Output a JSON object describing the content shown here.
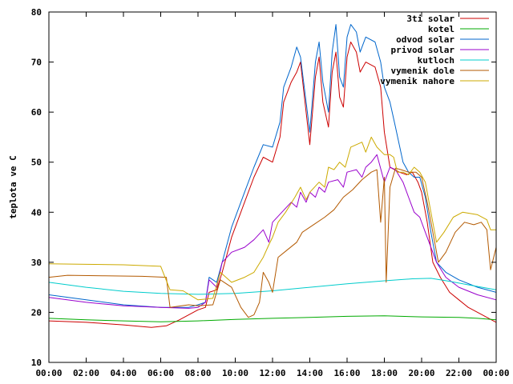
{
  "chart_data": {
    "type": "line",
    "ylabel": "teplota ve C",
    "xlabel": "",
    "ylim": [
      10,
      80
    ],
    "xlim": [
      0,
      24
    ],
    "yticks": [
      10,
      20,
      30,
      40,
      50,
      60,
      70,
      80
    ],
    "xticks": [
      {
        "value": 0,
        "label": "00:00"
      },
      {
        "value": 2,
        "label": "02:00"
      },
      {
        "value": 4,
        "label": "04:00"
      },
      {
        "value": 6,
        "label": "06:00"
      },
      {
        "value": 8,
        "label": "08:00"
      },
      {
        "value": 10,
        "label": "10:00"
      },
      {
        "value": 12,
        "label": "12:00"
      },
      {
        "value": 14,
        "label": "14:00"
      },
      {
        "value": 16,
        "label": "16:00"
      },
      {
        "value": 18,
        "label": "18:00"
      },
      {
        "value": 20,
        "label": "20:00"
      },
      {
        "value": 22,
        "label": "22:00"
      },
      {
        "value": 24,
        "label": "00:00"
      }
    ],
    "legend_position": "top-right",
    "grid": false,
    "series": [
      {
        "name": "3ti solar",
        "color": "#cc0000",
        "points": [
          [
            0,
            18.3
          ],
          [
            2,
            18
          ],
          [
            4,
            17.5
          ],
          [
            5.5,
            17
          ],
          [
            6.3,
            17.3
          ],
          [
            7,
            18.5
          ],
          [
            8,
            20.5
          ],
          [
            8.4,
            21
          ],
          [
            8.6,
            24
          ],
          [
            9,
            24.5
          ],
          [
            9.3,
            28
          ],
          [
            9.8,
            35
          ],
          [
            10.5,
            42
          ],
          [
            11,
            47
          ],
          [
            11.5,
            51
          ],
          [
            12,
            50
          ],
          [
            12.4,
            55
          ],
          [
            12.6,
            62
          ],
          [
            13,
            66
          ],
          [
            13.3,
            68
          ],
          [
            13.5,
            70
          ],
          [
            13.8,
            60
          ],
          [
            14,
            53.5
          ],
          [
            14.3,
            67
          ],
          [
            14.5,
            71
          ],
          [
            14.7,
            62
          ],
          [
            15,
            57
          ],
          [
            15.2,
            68
          ],
          [
            15.4,
            72
          ],
          [
            15.6,
            63
          ],
          [
            15.8,
            61
          ],
          [
            16,
            71
          ],
          [
            16.2,
            74
          ],
          [
            16.5,
            72
          ],
          [
            16.7,
            68
          ],
          [
            17,
            70
          ],
          [
            17.5,
            69
          ],
          [
            17.8,
            65
          ],
          [
            18,
            56
          ],
          [
            18.3,
            49
          ],
          [
            18.8,
            48
          ],
          [
            19.2,
            47.5
          ],
          [
            19.5,
            48
          ],
          [
            19.8,
            46
          ],
          [
            20,
            44
          ],
          [
            20.3,
            38
          ],
          [
            20.6,
            30
          ],
          [
            21,
            27
          ],
          [
            21.5,
            24
          ],
          [
            22,
            22.5
          ],
          [
            22.5,
            21
          ],
          [
            23,
            20
          ],
          [
            23.5,
            19
          ],
          [
            24,
            18
          ]
        ]
      },
      {
        "name": "kotel",
        "color": "#00aa00",
        "points": [
          [
            0,
            18.8
          ],
          [
            2,
            18.5
          ],
          [
            4,
            18.3
          ],
          [
            6,
            18.1
          ],
          [
            8,
            18.3
          ],
          [
            10,
            18.6
          ],
          [
            12,
            18.8
          ],
          [
            14,
            19
          ],
          [
            16,
            19.2
          ],
          [
            18,
            19.3
          ],
          [
            20,
            19.1
          ],
          [
            22,
            19
          ],
          [
            23,
            18.8
          ],
          [
            24,
            18.5
          ]
        ]
      },
      {
        "name": "odvod solar",
        "color": "#0066cc",
        "points": [
          [
            0,
            23.5
          ],
          [
            2,
            22.5
          ],
          [
            4,
            21.5
          ],
          [
            6,
            21
          ],
          [
            7.5,
            21
          ],
          [
            8,
            21.5
          ],
          [
            8.4,
            22
          ],
          [
            8.6,
            27
          ],
          [
            9,
            26
          ],
          [
            9.3,
            30
          ],
          [
            9.8,
            37
          ],
          [
            10.5,
            44
          ],
          [
            11,
            49
          ],
          [
            11.5,
            53.5
          ],
          [
            12,
            53
          ],
          [
            12.4,
            58
          ],
          [
            12.6,
            65
          ],
          [
            13,
            69
          ],
          [
            13.3,
            73
          ],
          [
            13.5,
            71
          ],
          [
            13.8,
            62
          ],
          [
            14,
            56
          ],
          [
            14.3,
            70
          ],
          [
            14.5,
            74
          ],
          [
            14.7,
            66
          ],
          [
            15,
            60
          ],
          [
            15.2,
            72
          ],
          [
            15.4,
            77.5
          ],
          [
            15.6,
            67
          ],
          [
            15.8,
            65
          ],
          [
            16,
            75
          ],
          [
            16.2,
            77.5
          ],
          [
            16.5,
            76
          ],
          [
            16.7,
            72
          ],
          [
            17,
            75
          ],
          [
            17.5,
            74
          ],
          [
            17.8,
            70
          ],
          [
            18,
            65
          ],
          [
            18.3,
            62
          ],
          [
            18.6,
            57
          ],
          [
            19,
            50
          ],
          [
            19.3,
            48
          ],
          [
            19.6,
            47
          ],
          [
            19.9,
            47
          ],
          [
            20.2,
            43
          ],
          [
            20.5,
            36
          ],
          [
            20.8,
            30
          ],
          [
            21.3,
            28
          ],
          [
            22,
            26.5
          ],
          [
            23,
            25
          ],
          [
            24,
            24
          ]
        ]
      },
      {
        "name": "privod solar",
        "color": "#9900cc",
        "points": [
          [
            0,
            23
          ],
          [
            2,
            22
          ],
          [
            4,
            21.3
          ],
          [
            6,
            21
          ],
          [
            7.5,
            20.8
          ],
          [
            8,
            21
          ],
          [
            8.4,
            22
          ],
          [
            8.6,
            26.5
          ],
          [
            9,
            25
          ],
          [
            9.3,
            30
          ],
          [
            9.8,
            32
          ],
          [
            10.5,
            33
          ],
          [
            11,
            34.5
          ],
          [
            11.5,
            36.5
          ],
          [
            11.8,
            34
          ],
          [
            12,
            38
          ],
          [
            12.5,
            40
          ],
          [
            13,
            42
          ],
          [
            13.3,
            41
          ],
          [
            13.5,
            44
          ],
          [
            13.8,
            42
          ],
          [
            14,
            44
          ],
          [
            14.3,
            43
          ],
          [
            14.5,
            45
          ],
          [
            14.8,
            44
          ],
          [
            15,
            46
          ],
          [
            15.5,
            46.5
          ],
          [
            15.8,
            45
          ],
          [
            16,
            48
          ],
          [
            16.5,
            48.5
          ],
          [
            16.8,
            47
          ],
          [
            17,
            49
          ],
          [
            17.3,
            50
          ],
          [
            17.6,
            51.5
          ],
          [
            18,
            46
          ],
          [
            18.3,
            49
          ],
          [
            18.6,
            48.5
          ],
          [
            19,
            46
          ],
          [
            19.3,
            43
          ],
          [
            19.6,
            40
          ],
          [
            19.9,
            39
          ],
          [
            20.2,
            36
          ],
          [
            20.5,
            33
          ],
          [
            20.8,
            30
          ],
          [
            21.3,
            27
          ],
          [
            22,
            25
          ],
          [
            23,
            23.5
          ],
          [
            24,
            22.5
          ]
        ]
      },
      {
        "name": "kutloch",
        "color": "#00cccc",
        "points": [
          [
            0,
            26
          ],
          [
            2,
            25
          ],
          [
            4,
            24.2
          ],
          [
            6,
            23.8
          ],
          [
            8,
            23.6
          ],
          [
            10,
            23.8
          ],
          [
            12,
            24.3
          ],
          [
            14,
            25
          ],
          [
            16,
            25.7
          ],
          [
            18,
            26.3
          ],
          [
            19.5,
            26.7
          ],
          [
            20.5,
            26.8
          ],
          [
            21.5,
            26.2
          ],
          [
            22.5,
            25.5
          ],
          [
            24,
            24.5
          ]
        ]
      },
      {
        "name": "vymenik dole",
        "color": "#b35900",
        "points": [
          [
            0,
            27
          ],
          [
            1,
            27.4
          ],
          [
            3,
            27.3
          ],
          [
            5,
            27.2
          ],
          [
            6.3,
            27
          ],
          [
            6.5,
            21
          ],
          [
            7.5,
            21.5
          ],
          [
            8,
            21.3
          ],
          [
            8.8,
            21.5
          ],
          [
            9.2,
            26.5
          ],
          [
            9.8,
            25
          ],
          [
            10.3,
            21
          ],
          [
            10.7,
            19
          ],
          [
            11,
            19.5
          ],
          [
            11.3,
            22
          ],
          [
            11.5,
            28
          ],
          [
            11.8,
            26
          ],
          [
            12,
            24
          ],
          [
            12.3,
            31
          ],
          [
            12.8,
            32.5
          ],
          [
            13.3,
            34
          ],
          [
            13.6,
            36
          ],
          [
            14.2,
            37.5
          ],
          [
            14.8,
            39
          ],
          [
            15.3,
            40.5
          ],
          [
            15.8,
            43
          ],
          [
            16.3,
            44.5
          ],
          [
            16.8,
            46.5
          ],
          [
            17.3,
            48
          ],
          [
            17.6,
            48.5
          ],
          [
            17.8,
            38
          ],
          [
            18,
            47
          ],
          [
            18.1,
            26
          ],
          [
            18.3,
            45
          ],
          [
            18.6,
            48.8
          ],
          [
            18.9,
            48.5
          ],
          [
            19.3,
            48
          ],
          [
            19.7,
            48
          ],
          [
            20,
            47
          ],
          [
            20.3,
            42
          ],
          [
            20.6,
            36
          ],
          [
            20.9,
            30
          ],
          [
            21.3,
            32
          ],
          [
            21.8,
            36
          ],
          [
            22.3,
            38
          ],
          [
            22.8,
            37.5
          ],
          [
            23.2,
            38
          ],
          [
            23.5,
            36.5
          ],
          [
            23.7,
            28.5
          ],
          [
            24,
            33
          ]
        ]
      },
      {
        "name": "vymenik nahore",
        "color": "#ccaa00",
        "points": [
          [
            0,
            29.7
          ],
          [
            2,
            29.6
          ],
          [
            4,
            29.5
          ],
          [
            6,
            29.2
          ],
          [
            6.5,
            24.5
          ],
          [
            7.2,
            24.3
          ],
          [
            8,
            22.5
          ],
          [
            8.8,
            22.8
          ],
          [
            9.2,
            28
          ],
          [
            9.8,
            26
          ],
          [
            10.5,
            27
          ],
          [
            11,
            28
          ],
          [
            11.5,
            31
          ],
          [
            11.8,
            33.5
          ],
          [
            12,
            35
          ],
          [
            12.3,
            38
          ],
          [
            12.7,
            40
          ],
          [
            13.2,
            43
          ],
          [
            13.5,
            45
          ],
          [
            13.8,
            42.5
          ],
          [
            14,
            44
          ],
          [
            14.5,
            46
          ],
          [
            14.8,
            45
          ],
          [
            15,
            49
          ],
          [
            15.3,
            48.5
          ],
          [
            15.6,
            50
          ],
          [
            15.9,
            49
          ],
          [
            16.2,
            53
          ],
          [
            16.5,
            53.5
          ],
          [
            16.8,
            54
          ],
          [
            17,
            52
          ],
          [
            17.3,
            55
          ],
          [
            17.6,
            53
          ],
          [
            18,
            51.5
          ],
          [
            18.3,
            51.5
          ],
          [
            18.5,
            51
          ],
          [
            18.7,
            48
          ],
          [
            19,
            48
          ],
          [
            19.3,
            47.5
          ],
          [
            19.6,
            49
          ],
          [
            19.9,
            48
          ],
          [
            20.2,
            46
          ],
          [
            20.5,
            40
          ],
          [
            20.8,
            34
          ],
          [
            21.2,
            36
          ],
          [
            21.7,
            39
          ],
          [
            22.2,
            40
          ],
          [
            23,
            39.5
          ],
          [
            23.5,
            38.5
          ],
          [
            23.7,
            36.5
          ],
          [
            24,
            36.5
          ]
        ]
      }
    ]
  }
}
